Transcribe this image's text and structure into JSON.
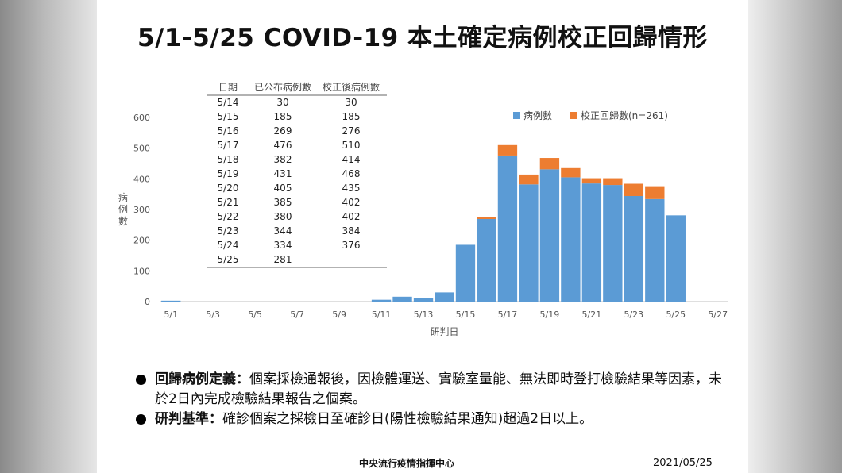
{
  "title": "5/1-5/25 COVID-19 本土確定病例校正回歸情形",
  "chart_data": {
    "type": "bar",
    "stacked": true,
    "categories": [
      "5/1",
      "5/2",
      "5/3",
      "5/4",
      "5/5",
      "5/6",
      "5/7",
      "5/8",
      "5/9",
      "5/10",
      "5/11",
      "5/12",
      "5/13",
      "5/14",
      "5/15",
      "5/16",
      "5/17",
      "5/18",
      "5/19",
      "5/20",
      "5/21",
      "5/22",
      "5/23",
      "5/24",
      "5/25",
      "5/26",
      "5/27"
    ],
    "x_tick_labels": [
      "5/1",
      "5/3",
      "5/5",
      "5/7",
      "5/9",
      "5/11",
      "5/13",
      "5/15",
      "5/17",
      "5/19",
      "5/21",
      "5/23",
      "5/25",
      "5/27"
    ],
    "series": [
      {
        "name": "病例數",
        "color": "#5b9bd5",
        "values": [
          3,
          0,
          0,
          0,
          0,
          0,
          0,
          0,
          0,
          0,
          6,
          16,
          12,
          30,
          185,
          269,
          476,
          382,
          431,
          405,
          385,
          380,
          344,
          334,
          281,
          0,
          0
        ]
      },
      {
        "name": "校正回歸數(n=261)",
        "color": "#ed7d31",
        "values": [
          0,
          0,
          0,
          0,
          0,
          0,
          0,
          0,
          0,
          0,
          0,
          0,
          0,
          0,
          0,
          7,
          34,
          32,
          37,
          30,
          17,
          22,
          40,
          42,
          0,
          0,
          0
        ]
      }
    ],
    "ylim": [
      0,
      600
    ],
    "yticks": [
      0,
      100,
      200,
      300,
      400,
      500,
      600
    ],
    "ylabel": "病例數",
    "xlabel": "研判日",
    "grid": false,
    "legend_position": "top-right"
  },
  "table": {
    "headers": [
      "日期",
      "已公布病例數",
      "校正後病例數"
    ],
    "rows": [
      [
        "5/14",
        "30",
        "30"
      ],
      [
        "5/15",
        "185",
        "185"
      ],
      [
        "5/16",
        "269",
        "276"
      ],
      [
        "5/17",
        "476",
        "510"
      ],
      [
        "5/18",
        "382",
        "414"
      ],
      [
        "5/19",
        "431",
        "468"
      ],
      [
        "5/20",
        "405",
        "435"
      ],
      [
        "5/21",
        "385",
        "402"
      ],
      [
        "5/22",
        "380",
        "402"
      ],
      [
        "5/23",
        "344",
        "384"
      ],
      [
        "5/24",
        "334",
        "376"
      ],
      [
        "5/25",
        "281",
        "-"
      ]
    ]
  },
  "notes": [
    {
      "term": "回歸病例定義：",
      "text": "個案採檢通報後，因檢體運送、實驗室量能、無法即時登打檢驗結果等因素，未於2日內完成檢驗結果報告之個案。"
    },
    {
      "term": "研判基準：",
      "text": "確診個案之採檢日至確診日(陽性檢驗結果通知)超過2日以上。"
    }
  ],
  "footer": {
    "center": "中央流行疫情指揮中心",
    "date": "2021/05/25"
  }
}
